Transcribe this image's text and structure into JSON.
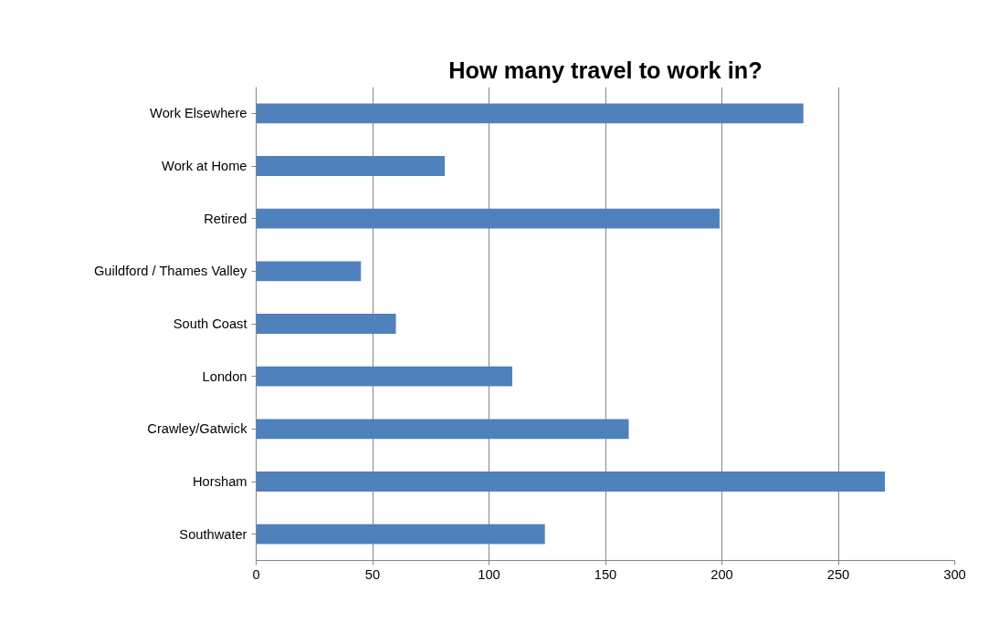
{
  "chart_data": {
    "type": "bar",
    "orientation": "horizontal",
    "title": "How many travel to work in?",
    "categories": [
      "Work Elsewhere",
      "Work at Home",
      "Retired",
      "Guildford / Thames Valley",
      "South Coast",
      "London",
      "Crawley/Gatwick",
      "Horsham",
      "Southwater"
    ],
    "values": [
      235,
      81,
      199,
      45,
      60,
      110,
      160,
      270,
      124
    ],
    "color": "#4f81bd",
    "xlim": [
      0,
      300
    ],
    "xticks": [
      0,
      50,
      100,
      150,
      200,
      250,
      300
    ],
    "grid": "x"
  }
}
